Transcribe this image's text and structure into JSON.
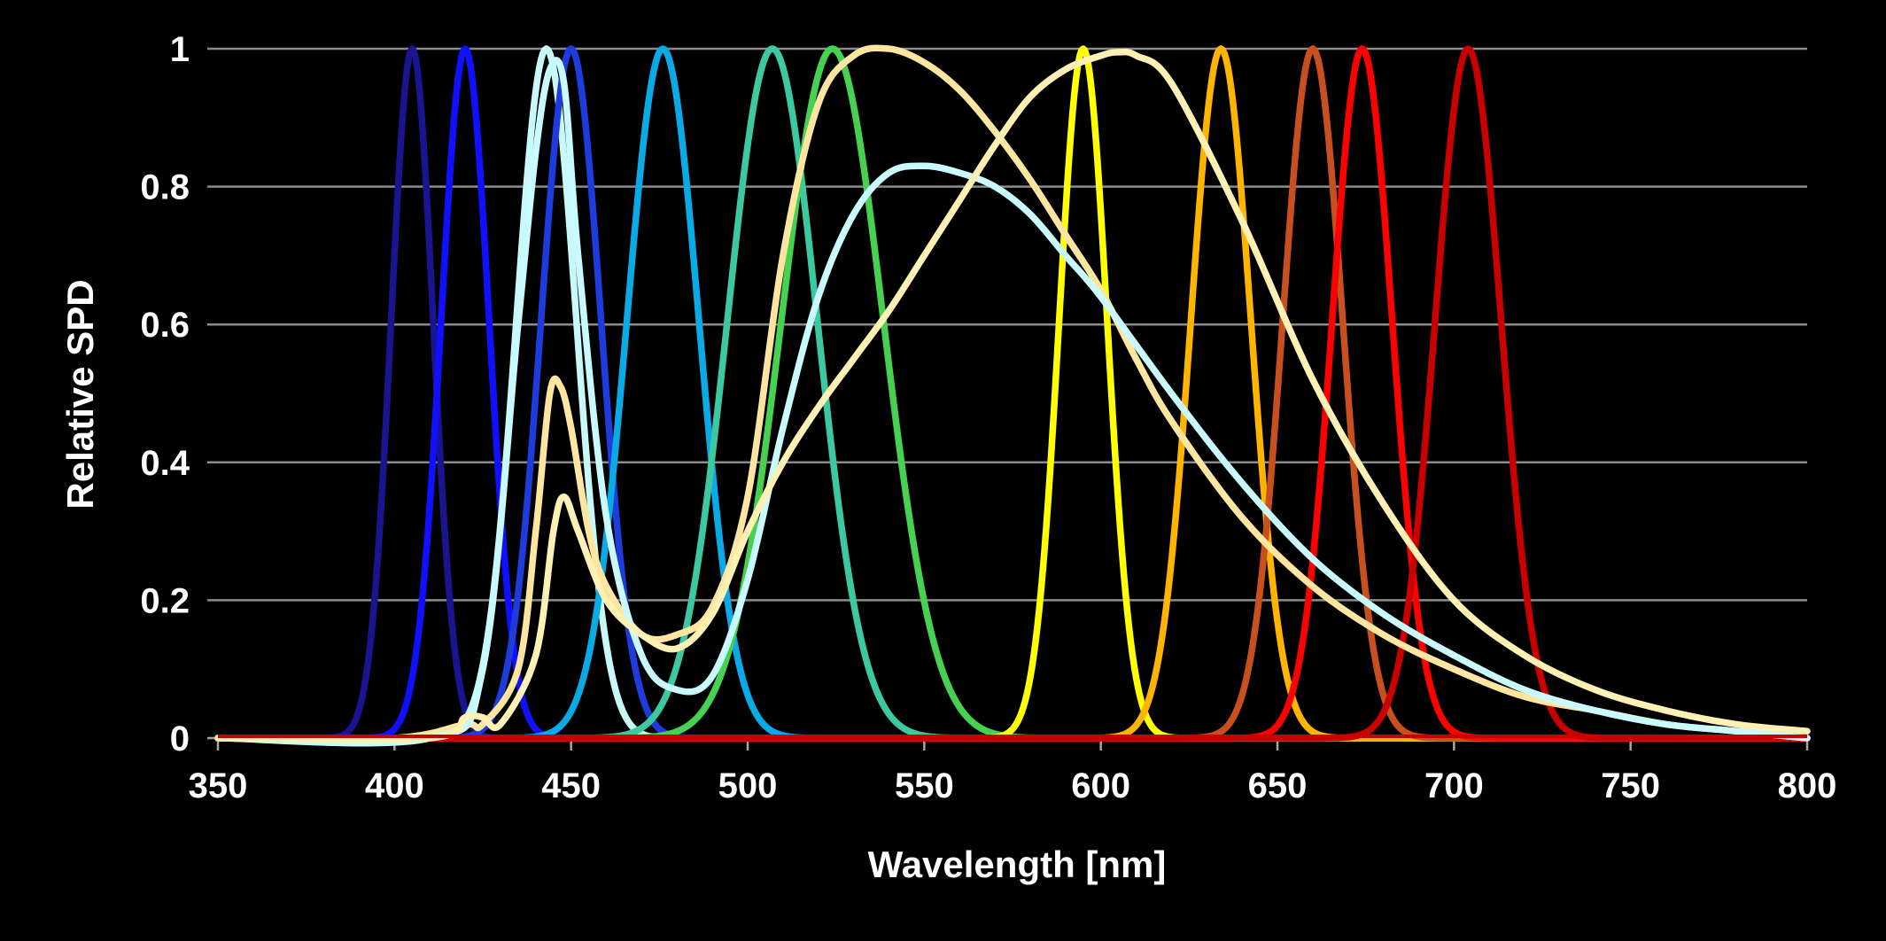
{
  "chart_data": {
    "type": "line",
    "title": "",
    "xlabel": "Wavelength [nm]",
    "ylabel": "Relative SPD",
    "xlim": [
      350,
      800
    ],
    "ylim": [
      0,
      1
    ],
    "x_ticks": [
      "350",
      "400",
      "450",
      "500",
      "550",
      "600",
      "650",
      "700",
      "750",
      "800"
    ],
    "y_ticks": [
      "0",
      "0.2",
      "0.4",
      "0.6",
      "0.8",
      "1"
    ],
    "grid": "horizontal",
    "legend": "none",
    "series": [
      {
        "color": "#1a1490",
        "kind": "led",
        "peak": 405,
        "fwhm": 14,
        "amplitude": 1.0
      },
      {
        "color": "#1010ff",
        "kind": "led",
        "peak": 420,
        "fwhm": 16,
        "amplitude": 1.0
      },
      {
        "color": "#c8f8f8",
        "kind": "led",
        "peak": 443,
        "fwhm": 20,
        "amplitude": 1.0
      },
      {
        "color": "#1e3cdc",
        "kind": "led",
        "peak": 450,
        "fwhm": 20,
        "amplitude": 1.0
      },
      {
        "color": "#0aaae6",
        "kind": "led",
        "peak": 476,
        "fwhm": 24,
        "amplitude": 1.0
      },
      {
        "color": "#3cc8a0",
        "kind": "led",
        "peak": 507,
        "fwhm": 30,
        "amplitude": 1.0
      },
      {
        "color": "#46d250",
        "kind": "led",
        "peak": 524,
        "fwhm": 34,
        "amplitude": 1.0
      },
      {
        "color": "#ffff00",
        "kind": "led",
        "peak": 595,
        "fwhm": 16,
        "amplitude": 1.0
      },
      {
        "color": "#ffb400",
        "kind": "led",
        "peak": 634,
        "fwhm": 20,
        "amplitude": 1.0
      },
      {
        "color": "#c8501e",
        "kind": "led",
        "peak": 660,
        "fwhm": 20,
        "amplitude": 1.0
      },
      {
        "color": "#ff0000",
        "kind": "led",
        "peak": 674,
        "fwhm": 20,
        "amplitude": 1.0
      },
      {
        "color": "#c80000",
        "kind": "led",
        "peak": 704,
        "fwhm": 22,
        "amplitude": 1.0
      },
      {
        "color": "#ffe6a0",
        "kind": "points",
        "x": [
          350,
          400,
          420,
          425,
          435,
          440,
          444,
          447,
          450,
          455,
          460,
          470,
          480,
          490,
          500,
          510,
          520,
          530,
          540,
          550,
          560,
          570,
          580,
          590,
          600,
          610,
          620,
          640,
          660,
          680,
          700,
          720,
          740,
          760,
          780,
          800
        ],
        "y": [
          0.0,
          0.0,
          0.02,
          0.02,
          0.1,
          0.3,
          0.5,
          0.51,
          0.45,
          0.3,
          0.22,
          0.15,
          0.15,
          0.19,
          0.35,
          0.7,
          0.92,
          0.99,
          1.0,
          0.98,
          0.94,
          0.88,
          0.81,
          0.73,
          0.65,
          0.55,
          0.46,
          0.32,
          0.22,
          0.15,
          0.1,
          0.06,
          0.04,
          0.02,
          0.01,
          0.0
        ]
      },
      {
        "color": "#c8faff",
        "kind": "points",
        "x": [
          350,
          410,
          425,
          435,
          440,
          444,
          448,
          452,
          460,
          470,
          480,
          490,
          500,
          510,
          520,
          530,
          540,
          550,
          560,
          570,
          580,
          590,
          600,
          620,
          640,
          660,
          680,
          700,
          720,
          740,
          760,
          780,
          800
        ],
        "y": [
          0.0,
          0.0,
          0.1,
          0.6,
          0.85,
          0.97,
          0.95,
          0.7,
          0.32,
          0.12,
          0.07,
          0.09,
          0.23,
          0.45,
          0.64,
          0.76,
          0.82,
          0.83,
          0.82,
          0.8,
          0.76,
          0.7,
          0.64,
          0.5,
          0.37,
          0.26,
          0.18,
          0.12,
          0.07,
          0.04,
          0.02,
          0.01,
          0.0
        ]
      },
      {
        "color": "#fff0b4",
        "kind": "points",
        "x": [
          350,
          410,
          420,
          425,
          430,
          440,
          445,
          448,
          452,
          460,
          470,
          480,
          490,
          500,
          510,
          520,
          530,
          540,
          550,
          560,
          570,
          580,
          590,
          600,
          605,
          610,
          620,
          640,
          660,
          680,
          700,
          720,
          740,
          760,
          780,
          800
        ],
        "y": [
          0.0,
          0.0,
          0.03,
          0.03,
          0.02,
          0.12,
          0.3,
          0.35,
          0.3,
          0.2,
          0.15,
          0.13,
          0.18,
          0.3,
          0.4,
          0.48,
          0.55,
          0.62,
          0.7,
          0.78,
          0.86,
          0.93,
          0.97,
          0.99,
          0.995,
          0.99,
          0.95,
          0.75,
          0.52,
          0.34,
          0.2,
          0.12,
          0.07,
          0.04,
          0.02,
          0.01
        ]
      }
    ]
  }
}
